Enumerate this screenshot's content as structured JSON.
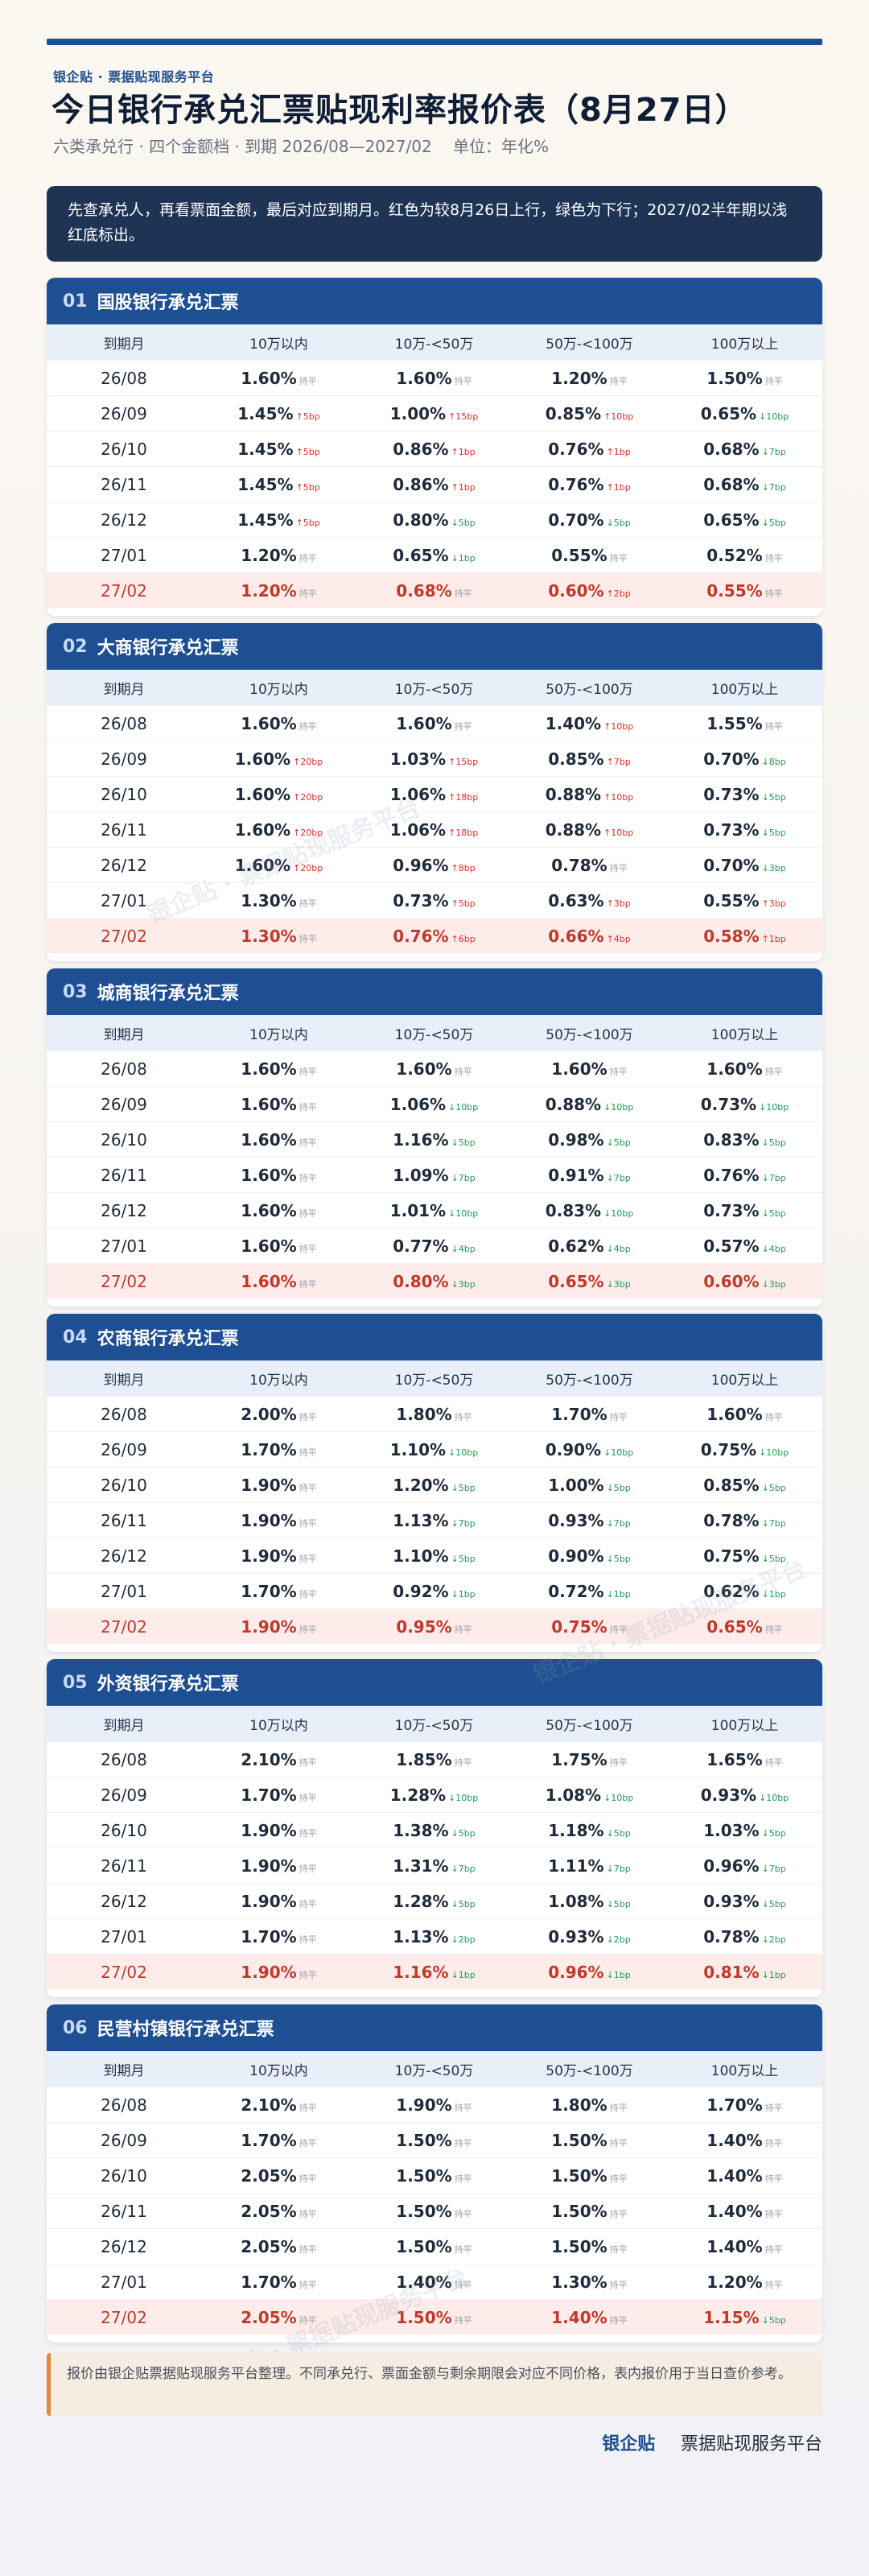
{
  "brand_line": "银企贴 · 票据贴现服务平台",
  "title": "今日银行承兑汇票贴现利率报价表（8月27日）",
  "subtitle": "六类承兑行 · 四个金额档 · 到期 2026/08—2027/02　 单位：年化%",
  "intro": "先查承兑人，再看票面金额，最后对应到期月。红色为较8月26日上行，绿色为下行；2027/02半年期以浅红底标出。",
  "watermark": "银企贴 · 票据贴现服务平台",
  "columns": [
    "到期月",
    "10万以内",
    "10万-<50万",
    "50万-<100万",
    "100万以上"
  ],
  "sections": [
    {
      "num": "01",
      "name": "国股银行承兑汇票",
      "rows": [
        {
          "m": "26/08",
          "cells": [
            [
              "1.60%",
              "持平",
              "flat"
            ],
            [
              "1.60%",
              "持平",
              "flat"
            ],
            [
              "1.20%",
              "持平",
              "flat"
            ],
            [
              "1.50%",
              "持平",
              "flat"
            ]
          ]
        },
        {
          "m": "26/09",
          "cells": [
            [
              "1.45%",
              "↑5bp",
              "up"
            ],
            [
              "1.00%",
              "↑15bp",
              "up"
            ],
            [
              "0.85%",
              "↑10bp",
              "up"
            ],
            [
              "0.65%",
              "↓10bp",
              "down"
            ]
          ]
        },
        {
          "m": "26/10",
          "cells": [
            [
              "1.45%",
              "↑5bp",
              "up"
            ],
            [
              "0.86%",
              "↑1bp",
              "up"
            ],
            [
              "0.76%",
              "↑1bp",
              "up"
            ],
            [
              "0.68%",
              "↓7bp",
              "down"
            ]
          ]
        },
        {
          "m": "26/11",
          "cells": [
            [
              "1.45%",
              "↑5bp",
              "up"
            ],
            [
              "0.86%",
              "↑1bp",
              "up"
            ],
            [
              "0.76%",
              "↑1bp",
              "up"
            ],
            [
              "0.68%",
              "↓7bp",
              "down"
            ]
          ]
        },
        {
          "m": "26/12",
          "cells": [
            [
              "1.45%",
              "↑5bp",
              "up"
            ],
            [
              "0.80%",
              "↓5bp",
              "down"
            ],
            [
              "0.70%",
              "↓5bp",
              "down"
            ],
            [
              "0.65%",
              "↓5bp",
              "down"
            ]
          ]
        },
        {
          "m": "27/01",
          "cells": [
            [
              "1.20%",
              "持平",
              "flat"
            ],
            [
              "0.65%",
              "↓1bp",
              "down"
            ],
            [
              "0.55%",
              "持平",
              "flat"
            ],
            [
              "0.52%",
              "持平",
              "flat"
            ]
          ]
        },
        {
          "m": "27/02",
          "cells": [
            [
              "1.20%",
              "持平",
              "flat"
            ],
            [
              "0.68%",
              "持平",
              "flat"
            ],
            [
              "0.60%",
              "↑2bp",
              "up"
            ],
            [
              "0.55%",
              "持平",
              "flat"
            ]
          ]
        }
      ]
    },
    {
      "num": "02",
      "name": "大商银行承兑汇票",
      "rows": [
        {
          "m": "26/08",
          "cells": [
            [
              "1.60%",
              "持平",
              "flat"
            ],
            [
              "1.60%",
              "持平",
              "flat"
            ],
            [
              "1.40%",
              "↑10bp",
              "up"
            ],
            [
              "1.55%",
              "持平",
              "flat"
            ]
          ]
        },
        {
          "m": "26/09",
          "cells": [
            [
              "1.60%",
              "↑20bp",
              "up"
            ],
            [
              "1.03%",
              "↑15bp",
              "up"
            ],
            [
              "0.85%",
              "↑7bp",
              "up"
            ],
            [
              "0.70%",
              "↓8bp",
              "down"
            ]
          ]
        },
        {
          "m": "26/10",
          "cells": [
            [
              "1.60%",
              "↑20bp",
              "up"
            ],
            [
              "1.06%",
              "↑18bp",
              "up"
            ],
            [
              "0.88%",
              "↑10bp",
              "up"
            ],
            [
              "0.73%",
              "↓5bp",
              "down"
            ]
          ]
        },
        {
          "m": "26/11",
          "cells": [
            [
              "1.60%",
              "↑20bp",
              "up"
            ],
            [
              "1.06%",
              "↑18bp",
              "up"
            ],
            [
              "0.88%",
              "↑10bp",
              "up"
            ],
            [
              "0.73%",
              "↓5bp",
              "down"
            ]
          ]
        },
        {
          "m": "26/12",
          "cells": [
            [
              "1.60%",
              "↑20bp",
              "up"
            ],
            [
              "0.96%",
              "↑8bp",
              "up"
            ],
            [
              "0.78%",
              "持平",
              "flat"
            ],
            [
              "0.70%",
              "↓3bp",
              "down"
            ]
          ]
        },
        {
          "m": "27/01",
          "cells": [
            [
              "1.30%",
              "持平",
              "flat"
            ],
            [
              "0.73%",
              "↑5bp",
              "up"
            ],
            [
              "0.63%",
              "↑3bp",
              "up"
            ],
            [
              "0.55%",
              "↑3bp",
              "up"
            ]
          ]
        },
        {
          "m": "27/02",
          "cells": [
            [
              "1.30%",
              "持平",
              "flat"
            ],
            [
              "0.76%",
              "↑6bp",
              "up"
            ],
            [
              "0.66%",
              "↑4bp",
              "up"
            ],
            [
              "0.58%",
              "↑1bp",
              "up"
            ]
          ]
        }
      ]
    },
    {
      "num": "03",
      "name": "城商银行承兑汇票",
      "rows": [
        {
          "m": "26/08",
          "cells": [
            [
              "1.60%",
              "持平",
              "flat"
            ],
            [
              "1.60%",
              "持平",
              "flat"
            ],
            [
              "1.60%",
              "持平",
              "flat"
            ],
            [
              "1.60%",
              "持平",
              "flat"
            ]
          ]
        },
        {
          "m": "26/09",
          "cells": [
            [
              "1.60%",
              "持平",
              "flat"
            ],
            [
              "1.06%",
              "↓10bp",
              "down"
            ],
            [
              "0.88%",
              "↓10bp",
              "down"
            ],
            [
              "0.73%",
              "↓10bp",
              "down"
            ]
          ]
        },
        {
          "m": "26/10",
          "cells": [
            [
              "1.60%",
              "持平",
              "flat"
            ],
            [
              "1.16%",
              "↓5bp",
              "down"
            ],
            [
              "0.98%",
              "↓5bp",
              "down"
            ],
            [
              "0.83%",
              "↓5bp",
              "down"
            ]
          ]
        },
        {
          "m": "26/11",
          "cells": [
            [
              "1.60%",
              "持平",
              "flat"
            ],
            [
              "1.09%",
              "↓7bp",
              "down"
            ],
            [
              "0.91%",
              "↓7bp",
              "down"
            ],
            [
              "0.76%",
              "↓7bp",
              "down"
            ]
          ]
        },
        {
          "m": "26/12",
          "cells": [
            [
              "1.60%",
              "持平",
              "flat"
            ],
            [
              "1.01%",
              "↓10bp",
              "down"
            ],
            [
              "0.83%",
              "↓10bp",
              "down"
            ],
            [
              "0.73%",
              "↓5bp",
              "down"
            ]
          ]
        },
        {
          "m": "27/01",
          "cells": [
            [
              "1.60%",
              "持平",
              "flat"
            ],
            [
              "0.77%",
              "↓4bp",
              "down"
            ],
            [
              "0.62%",
              "↓4bp",
              "down"
            ],
            [
              "0.57%",
              "↓4bp",
              "down"
            ]
          ]
        },
        {
          "m": "27/02",
          "cells": [
            [
              "1.60%",
              "持平",
              "flat"
            ],
            [
              "0.80%",
              "↓3bp",
              "down"
            ],
            [
              "0.65%",
              "↓3bp",
              "down"
            ],
            [
              "0.60%",
              "↓3bp",
              "down"
            ]
          ]
        }
      ]
    },
    {
      "num": "04",
      "name": "农商银行承兑汇票",
      "rows": [
        {
          "m": "26/08",
          "cells": [
            [
              "2.00%",
              "持平",
              "flat"
            ],
            [
              "1.80%",
              "持平",
              "flat"
            ],
            [
              "1.70%",
              "持平",
              "flat"
            ],
            [
              "1.60%",
              "持平",
              "flat"
            ]
          ]
        },
        {
          "m": "26/09",
          "cells": [
            [
              "1.70%",
              "持平",
              "flat"
            ],
            [
              "1.10%",
              "↓10bp",
              "down"
            ],
            [
              "0.90%",
              "↓10bp",
              "down"
            ],
            [
              "0.75%",
              "↓10bp",
              "down"
            ]
          ]
        },
        {
          "m": "26/10",
          "cells": [
            [
              "1.90%",
              "持平",
              "flat"
            ],
            [
              "1.20%",
              "↓5bp",
              "down"
            ],
            [
              "1.00%",
              "↓5bp",
              "down"
            ],
            [
              "0.85%",
              "↓5bp",
              "down"
            ]
          ]
        },
        {
          "m": "26/11",
          "cells": [
            [
              "1.90%",
              "持平",
              "flat"
            ],
            [
              "1.13%",
              "↓7bp",
              "down"
            ],
            [
              "0.93%",
              "↓7bp",
              "down"
            ],
            [
              "0.78%",
              "↓7bp",
              "down"
            ]
          ]
        },
        {
          "m": "26/12",
          "cells": [
            [
              "1.90%",
              "持平",
              "flat"
            ],
            [
              "1.10%",
              "↓5bp",
              "down"
            ],
            [
              "0.90%",
              "↓5bp",
              "down"
            ],
            [
              "0.75%",
              "↓5bp",
              "down"
            ]
          ]
        },
        {
          "m": "27/01",
          "cells": [
            [
              "1.70%",
              "持平",
              "flat"
            ],
            [
              "0.92%",
              "↓1bp",
              "down"
            ],
            [
              "0.72%",
              "↓1bp",
              "down"
            ],
            [
              "0.62%",
              "↓1bp",
              "down"
            ]
          ]
        },
        {
          "m": "27/02",
          "cells": [
            [
              "1.90%",
              "持平",
              "flat"
            ],
            [
              "0.95%",
              "持平",
              "flat"
            ],
            [
              "0.75%",
              "持平",
              "flat"
            ],
            [
              "0.65%",
              "持平",
              "flat"
            ]
          ]
        }
      ]
    },
    {
      "num": "05",
      "name": "外资银行承兑汇票",
      "rows": [
        {
          "m": "26/08",
          "cells": [
            [
              "2.10%",
              "持平",
              "flat"
            ],
            [
              "1.85%",
              "持平",
              "flat"
            ],
            [
              "1.75%",
              "持平",
              "flat"
            ],
            [
              "1.65%",
              "持平",
              "flat"
            ]
          ]
        },
        {
          "m": "26/09",
          "cells": [
            [
              "1.70%",
              "持平",
              "flat"
            ],
            [
              "1.28%",
              "↓10bp",
              "down"
            ],
            [
              "1.08%",
              "↓10bp",
              "down"
            ],
            [
              "0.93%",
              "↓10bp",
              "down"
            ]
          ]
        },
        {
          "m": "26/10",
          "cells": [
            [
              "1.90%",
              "持平",
              "flat"
            ],
            [
              "1.38%",
              "↓5bp",
              "down"
            ],
            [
              "1.18%",
              "↓5bp",
              "down"
            ],
            [
              "1.03%",
              "↓5bp",
              "down"
            ]
          ]
        },
        {
          "m": "26/11",
          "cells": [
            [
              "1.90%",
              "持平",
              "flat"
            ],
            [
              "1.31%",
              "↓7bp",
              "down"
            ],
            [
              "1.11%",
              "↓7bp",
              "down"
            ],
            [
              "0.96%",
              "↓7bp",
              "down"
            ]
          ]
        },
        {
          "m": "26/12",
          "cells": [
            [
              "1.90%",
              "持平",
              "flat"
            ],
            [
              "1.28%",
              "↓5bp",
              "down"
            ],
            [
              "1.08%",
              "↓5bp",
              "down"
            ],
            [
              "0.93%",
              "↓5bp",
              "down"
            ]
          ]
        },
        {
          "m": "27/01",
          "cells": [
            [
              "1.70%",
              "持平",
              "flat"
            ],
            [
              "1.13%",
              "↓2bp",
              "down"
            ],
            [
              "0.93%",
              "↓2bp",
              "down"
            ],
            [
              "0.78%",
              "↓2bp",
              "down"
            ]
          ]
        },
        {
          "m": "27/02",
          "cells": [
            [
              "1.90%",
              "持平",
              "flat"
            ],
            [
              "1.16%",
              "↓1bp",
              "down"
            ],
            [
              "0.96%",
              "↓1bp",
              "down"
            ],
            [
              "0.81%",
              "↓1bp",
              "down"
            ]
          ]
        }
      ]
    },
    {
      "num": "06",
      "name": "民营村镇银行承兑汇票",
      "rows": [
        {
          "m": "26/08",
          "cells": [
            [
              "2.10%",
              "持平",
              "flat"
            ],
            [
              "1.90%",
              "持平",
              "flat"
            ],
            [
              "1.80%",
              "持平",
              "flat"
            ],
            [
              "1.70%",
              "持平",
              "flat"
            ]
          ]
        },
        {
          "m": "26/09",
          "cells": [
            [
              "1.70%",
              "持平",
              "flat"
            ],
            [
              "1.50%",
              "持平",
              "flat"
            ],
            [
              "1.50%",
              "持平",
              "flat"
            ],
            [
              "1.40%",
              "持平",
              "flat"
            ]
          ]
        },
        {
          "m": "26/10",
          "cells": [
            [
              "2.05%",
              "持平",
              "flat"
            ],
            [
              "1.50%",
              "持平",
              "flat"
            ],
            [
              "1.50%",
              "持平",
              "flat"
            ],
            [
              "1.40%",
              "持平",
              "flat"
            ]
          ]
        },
        {
          "m": "26/11",
          "cells": [
            [
              "2.05%",
              "持平",
              "flat"
            ],
            [
              "1.50%",
              "持平",
              "flat"
            ],
            [
              "1.50%",
              "持平",
              "flat"
            ],
            [
              "1.40%",
              "持平",
              "flat"
            ]
          ]
        },
        {
          "m": "26/12",
          "cells": [
            [
              "2.05%",
              "持平",
              "flat"
            ],
            [
              "1.50%",
              "持平",
              "flat"
            ],
            [
              "1.50%",
              "持平",
              "flat"
            ],
            [
              "1.40%",
              "持平",
              "flat"
            ]
          ]
        },
        {
          "m": "27/01",
          "cells": [
            [
              "1.70%",
              "持平",
              "flat"
            ],
            [
              "1.40%",
              "持平",
              "flat"
            ],
            [
              "1.30%",
              "持平",
              "flat"
            ],
            [
              "1.20%",
              "持平",
              "flat"
            ]
          ]
        },
        {
          "m": "27/02",
          "cells": [
            [
              "2.05%",
              "持平",
              "flat"
            ],
            [
              "1.50%",
              "持平",
              "flat"
            ],
            [
              "1.40%",
              "持平",
              "flat"
            ],
            [
              "1.15%",
              "↓5bp",
              "down"
            ]
          ]
        }
      ]
    }
  ],
  "footnote": "报价由银企贴票据贴现服务平台整理。不同承兑行、票面金额与剩余期限会对应不同价格，表内报价用于当日查价参考。",
  "footer": {
    "brand": "银企贴",
    "name": "票据贴现服务平台"
  }
}
